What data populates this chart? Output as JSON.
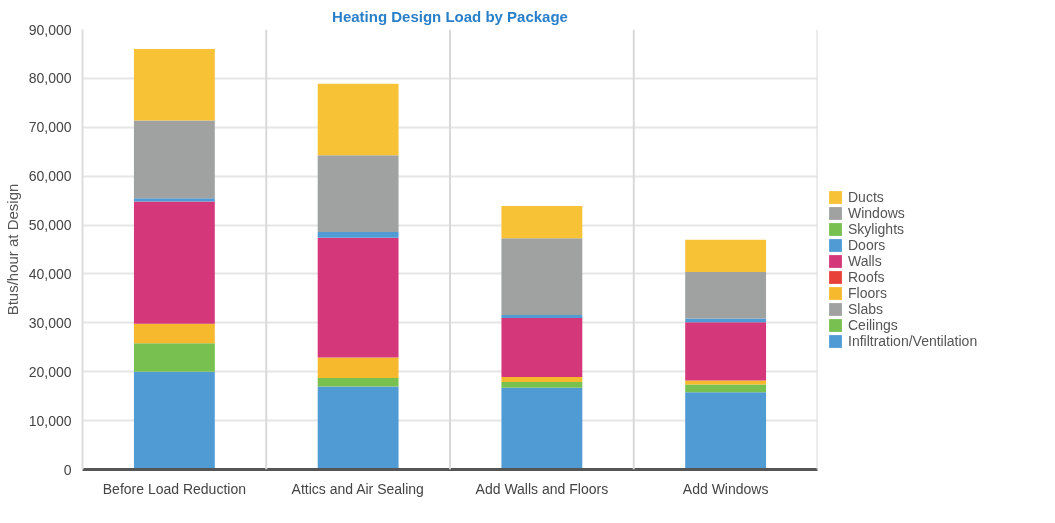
{
  "chart_data": {
    "type": "bar",
    "title": "Heating Design Load by Package",
    "ylabel": "Btus/hour at Design",
    "categories": [
      "Before Load Reduction",
      "Attics and Air Sealing",
      "Add Walls and Floors",
      "Add Windows"
    ],
    "stacked": true,
    "ylim": [
      0,
      90000
    ],
    "yticks": [
      {
        "value": 0,
        "label": "0"
      },
      {
        "value": 10000,
        "label": "10,000"
      },
      {
        "value": 20000,
        "label": "20,000"
      },
      {
        "value": 30000,
        "label": "30,000"
      },
      {
        "value": 40000,
        "label": "40,000"
      },
      {
        "value": 50000,
        "label": "50,000"
      },
      {
        "value": 60000,
        "label": "60,000"
      },
      {
        "value": 70000,
        "label": "70,000"
      },
      {
        "value": 80000,
        "label": "80,000"
      },
      {
        "value": 90000,
        "label": "90,000"
      }
    ],
    "grid": true,
    "legend": "right",
    "series": [
      {
        "name": "Infiltration/Ventilation",
        "color": "#519bd5",
        "values": [
          20000,
          17000,
          16700,
          15800
        ]
      },
      {
        "name": "Ceilings",
        "color": "#78c04f",
        "values": [
          5800,
          1700,
          1200,
          1600
        ]
      },
      {
        "name": "Slabs",
        "color": "#a0a1a1",
        "values": [
          0,
          0,
          0,
          0
        ]
      },
      {
        "name": "Floors",
        "color": "#f6b92e",
        "values": [
          4000,
          4200,
          1000,
          800
        ]
      },
      {
        "name": "Roofs",
        "color": "#e8413a",
        "values": [
          0,
          0,
          0,
          0
        ]
      },
      {
        "name": "Walls",
        "color": "#d4377a",
        "values": [
          25000,
          24500,
          12100,
          11900
        ]
      },
      {
        "name": "Doors",
        "color": "#519bd5",
        "values": [
          700,
          1200,
          600,
          800
        ]
      },
      {
        "name": "Skylights",
        "color": "#78c04f",
        "values": [
          0,
          0,
          0,
          0
        ]
      },
      {
        "name": "Windows",
        "color": "#a0a1a1",
        "values": [
          15900,
          15700,
          15700,
          9500
        ]
      },
      {
        "name": "Ducts",
        "color": "#f8c236",
        "values": [
          14600,
          14600,
          6600,
          6600
        ]
      }
    ]
  }
}
